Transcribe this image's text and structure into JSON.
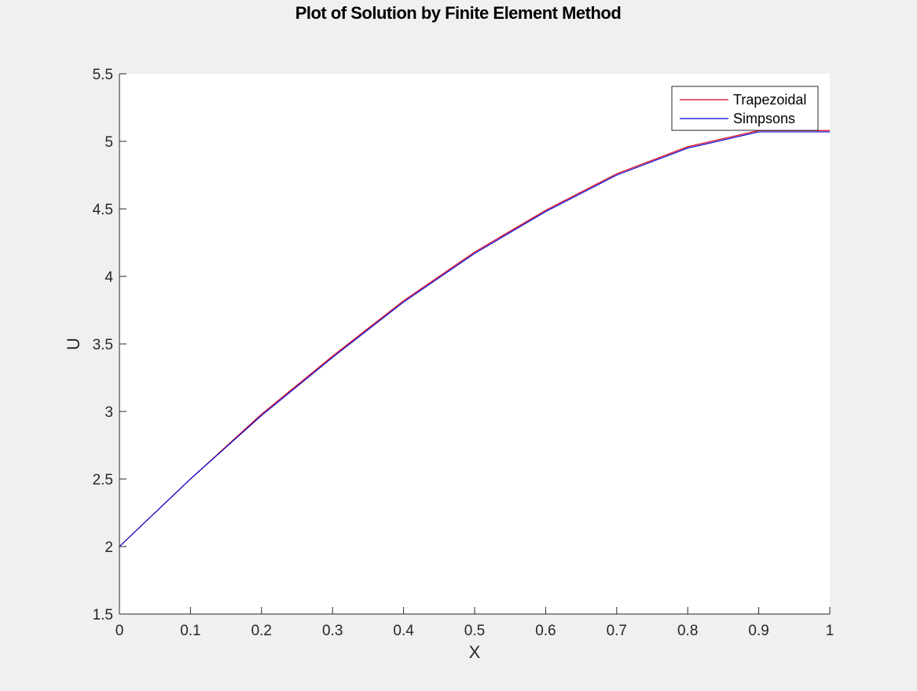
{
  "chart_data": {
    "type": "line",
    "title": "Plot of Solution by Finite Element Method",
    "xlabel": "X",
    "ylabel": "U",
    "xlim": [
      0,
      1
    ],
    "ylim": [
      1.5,
      5.5
    ],
    "x_ticks": [
      0,
      0.1,
      0.2,
      0.3,
      0.4,
      0.5,
      0.6,
      0.7,
      0.8,
      0.9,
      1
    ],
    "x_tick_labels": [
      "0",
      "0.1",
      "0.2",
      "0.3",
      "0.4",
      "0.5",
      "0.6",
      "0.7",
      "0.8",
      "0.9",
      "1"
    ],
    "y_ticks": [
      1.5,
      2,
      2.5,
      3,
      3.5,
      4,
      4.5,
      5,
      5.5
    ],
    "y_tick_labels": [
      "1.5",
      "2",
      "2.5",
      "3",
      "3.5",
      "4",
      "4.5",
      "5",
      "5.5"
    ],
    "grid": false,
    "legend_position": "top-right",
    "x": [
      0,
      0.1,
      0.2,
      0.3,
      0.4,
      0.5,
      0.6,
      0.7,
      0.8,
      0.9,
      1
    ],
    "series": [
      {
        "name": "Trapezoidal",
        "color": "#e0001b",
        "values": [
          2.0,
          2.5,
          2.98,
          3.41,
          3.82,
          4.18,
          4.49,
          4.76,
          4.96,
          5.08,
          5.08
        ]
      },
      {
        "name": "Simpsons",
        "color": "#0000d4",
        "values": [
          2.0,
          2.5,
          2.97,
          3.4,
          3.81,
          4.17,
          4.48,
          4.75,
          4.95,
          5.07,
          5.07
        ]
      }
    ]
  }
}
